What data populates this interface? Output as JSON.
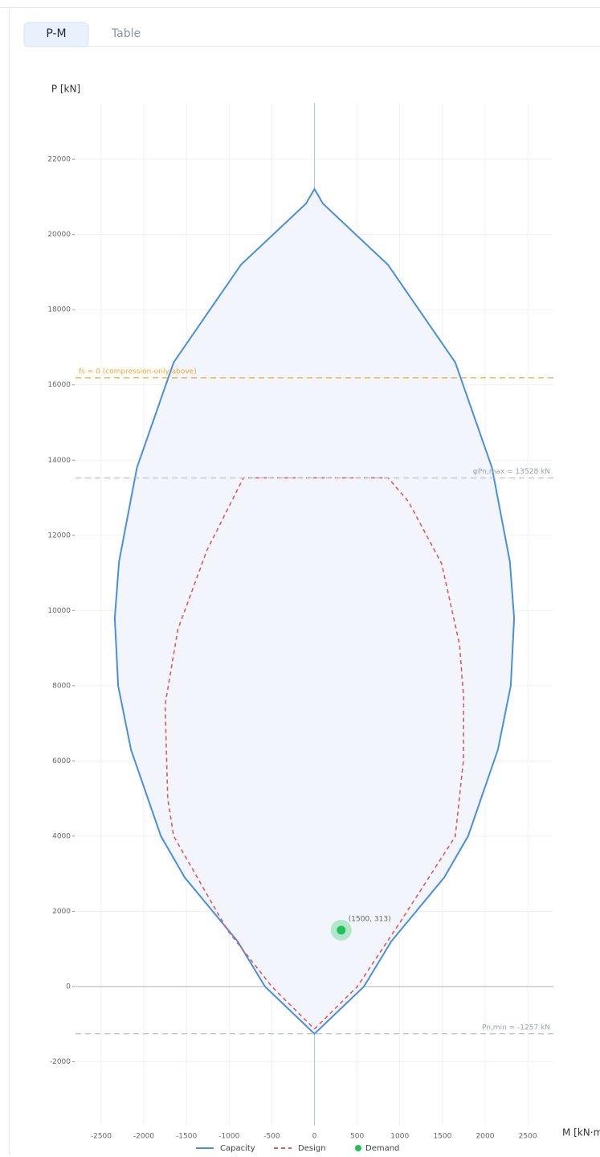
{
  "tabs": [
    "P-M",
    "Table"
  ],
  "chart_data": {
    "type": "line",
    "ylabel": "P [kN]",
    "xlabel": "M [kN·m]",
    "xlim": [
      -2800,
      2800
    ],
    "ylim": [
      -3700,
      23500
    ],
    "xticks": [
      -2500,
      -2000,
      -1500,
      -1000,
      -500,
      0,
      500,
      1000,
      1500,
      2000,
      2500
    ],
    "yticks": [
      -2000,
      0,
      2000,
      4000,
      6000,
      8000,
      10000,
      12000,
      14000,
      16000,
      18000,
      20000,
      22000
    ],
    "grid": true,
    "series": [
      {
        "name": "Capacity",
        "color": "#4a8ee0",
        "fill": "#f2f6fc",
        "x": [
          0,
          580,
          900,
          1520,
          1800,
          2150,
          2300,
          2340,
          2290,
          2080,
          1650,
          860,
          100,
          0,
          -100,
          -860,
          -1650,
          -2080,
          -2290,
          -2340,
          -2300,
          -2150,
          -1800,
          -1520,
          -900,
          -580,
          0
        ],
        "values": [
          -1257,
          0,
          1200,
          2900,
          4000,
          6300,
          8000,
          9800,
          11300,
          13800,
          16600,
          19200,
          20820,
          21210,
          20820,
          19200,
          16600,
          13800,
          11300,
          9800,
          8000,
          6300,
          4000,
          2900,
          1200,
          0,
          -1257
        ]
      },
      {
        "name": "Design",
        "color": "#e05a5a",
        "dashed": true,
        "x": [
          0,
          503,
          1000,
          1650,
          1745,
          1748,
          1700,
          1490,
          1100,
          862,
          -832,
          -1260,
          -1600,
          -1750,
          -1720,
          -1650,
          -1020,
          -500,
          0
        ],
        "values": [
          -1130,
          0,
          1700,
          3990,
          6000,
          7700,
          9100,
          11250,
          12900,
          13528,
          13528,
          11600,
          9500,
          7500,
          5000,
          4000,
          1500,
          0,
          -1130
        ]
      },
      {
        "name": "Demand",
        "color": "#22c05a",
        "marker": "point",
        "x": [
          313
        ],
        "values": [
          1500
        ],
        "value_labels": [
          "(1500, 313)"
        ]
      }
    ],
    "reference_lines": [
      {
        "label": "fs = 0 (compression-only above)",
        "value": 16190,
        "color": "#f0a830",
        "align": "left"
      },
      {
        "label": "φPn,max = 13528 kN",
        "value": 13528,
        "color": "#b8c0cc",
        "align": "right"
      },
      {
        "label": "Pn,min = -1257 kN",
        "value": -1257,
        "color": "#b8c0cc",
        "align": "right"
      }
    ]
  }
}
